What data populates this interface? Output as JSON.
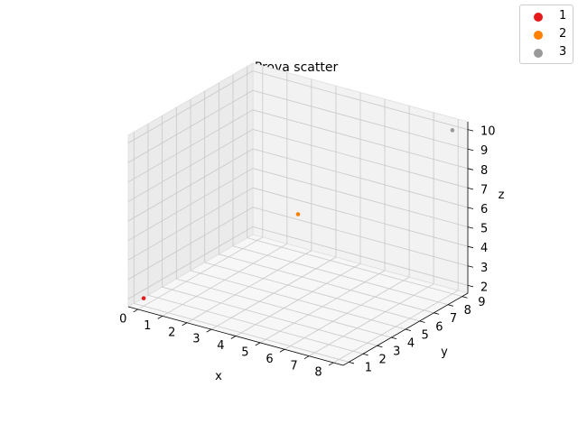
{
  "chart_data": {
    "type": "scatter",
    "projection": "3d",
    "title": "Prova scatter",
    "xlabel": "x",
    "ylabel": "y",
    "zlabel": "z",
    "xlim": [
      -0.4,
      8.4
    ],
    "ylim": [
      0.6,
      9.4
    ],
    "zlim": [
      1.6,
      10.4
    ],
    "xticks": [
      "0",
      "1",
      "2",
      "3",
      "4",
      "5",
      "6",
      "7",
      "8"
    ],
    "yticks": [
      "1",
      "2",
      "3",
      "4",
      "5",
      "6",
      "7",
      "8",
      "9"
    ],
    "zticks": [
      "2",
      "3",
      "4",
      "5",
      "6",
      "7",
      "8",
      "9",
      "10"
    ],
    "grid": true,
    "legend_position": "top-right",
    "series": [
      {
        "name": "1",
        "color": "#e41a1c",
        "points": [
          {
            "x": 0,
            "y": 1,
            "z": 2
          }
        ]
      },
      {
        "name": "2",
        "color": "#ff7f00",
        "points": [
          {
            "x": 4,
            "y": 5,
            "z": 6
          }
        ]
      },
      {
        "name": "3",
        "color": "#999999",
        "points": [
          {
            "x": 8,
            "y": 9,
            "z": 10
          }
        ]
      }
    ]
  }
}
